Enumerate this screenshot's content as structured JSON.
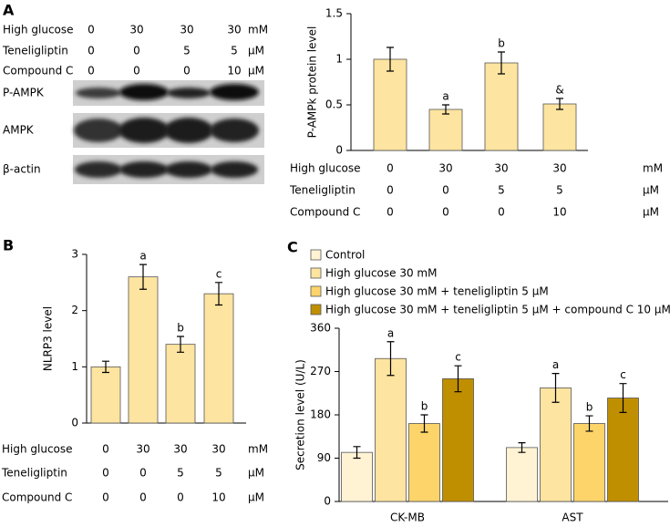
{
  "blot": {
    "label": "A",
    "conditions": [
      {
        "name": "High glucose",
        "values": [
          0,
          30,
          30,
          30
        ],
        "unit": "mM"
      },
      {
        "name": "Teneligliptin",
        "values": [
          0,
          0,
          5,
          5
        ],
        "unit": "μM"
      },
      {
        "name": "Compound C",
        "values": [
          0,
          0,
          0,
          10
        ],
        "unit": "μM"
      }
    ],
    "bands": [
      "P-AMPK",
      "AMPK",
      "β-actin"
    ]
  },
  "chart_data": [
    {
      "type": "bar",
      "y_label": "P-AMPk protein level",
      "ylim": [
        0,
        1.5
      ],
      "yticks": [
        0,
        0.5,
        1,
        1.5
      ],
      "color": "#fde4a0",
      "values": [
        1.0,
        0.45,
        0.96,
        0.51
      ],
      "errors": [
        0.13,
        0.05,
        0.12,
        0.06
      ],
      "annotations": [
        null,
        "a",
        "b",
        "&"
      ],
      "conditions": [
        {
          "name": "High glucose",
          "values": [
            0,
            30,
            30,
            30
          ],
          "unit": "mM"
        },
        {
          "name": "Teneligliptin",
          "values": [
            0,
            0,
            5,
            5
          ],
          "unit": "μM"
        },
        {
          "name": "Compound C",
          "values": [
            0,
            0,
            0,
            10
          ],
          "unit": "μM"
        }
      ]
    },
    {
      "type": "bar",
      "panel_label": "B",
      "y_label": "NLRP3 level",
      "ylim": [
        0,
        3
      ],
      "yticks": [
        0,
        1,
        2,
        3
      ],
      "color": "#fde4a0",
      "values": [
        1.0,
        2.6,
        1.4,
        2.3
      ],
      "errors": [
        0.1,
        0.22,
        0.14,
        0.2
      ],
      "annotations": [
        null,
        "a",
        "b",
        "c"
      ],
      "conditions": [
        {
          "name": "High glucose",
          "values": [
            0,
            30,
            30,
            30
          ],
          "unit": "mM"
        },
        {
          "name": "Teneligliptin",
          "values": [
            0,
            0,
            5,
            5
          ],
          "unit": "μM"
        },
        {
          "name": "Compound C",
          "values": [
            0,
            0,
            0,
            10
          ],
          "unit": "μM"
        }
      ]
    },
    {
      "type": "grouped_bar",
      "panel_label": "C",
      "y_label": "Secretion level (U/L)",
      "ylim": [
        0,
        360
      ],
      "yticks": [
        0,
        90,
        180,
        270,
        360
      ],
      "categories": [
        "CK-MB",
        "AST"
      ],
      "series": [
        {
          "name": "Control",
          "color": "#fff3d4",
          "values": [
            102,
            112
          ],
          "errors": [
            12,
            10
          ],
          "annotations": [
            null,
            null
          ]
        },
        {
          "name": "High glucose 30 mM",
          "color": "#fde4a0",
          "values": [
            297,
            236
          ],
          "errors": [
            35,
            30
          ],
          "annotations": [
            "a",
            "a"
          ]
        },
        {
          "name": "High glucose 30 mM + teneligliptin 5 μM",
          "color": "#fcd46a",
          "values": [
            162,
            162
          ],
          "errors": [
            18,
            16
          ],
          "annotations": [
            "b",
            "b"
          ]
        },
        {
          "name": "High glucose 30 mM + teneligliptin 5 μM + compound C 10 μM",
          "color": "#c08f00",
          "values": [
            255,
            215
          ],
          "errors": [
            27,
            30
          ],
          "annotations": [
            "c",
            "c"
          ]
        }
      ]
    }
  ]
}
